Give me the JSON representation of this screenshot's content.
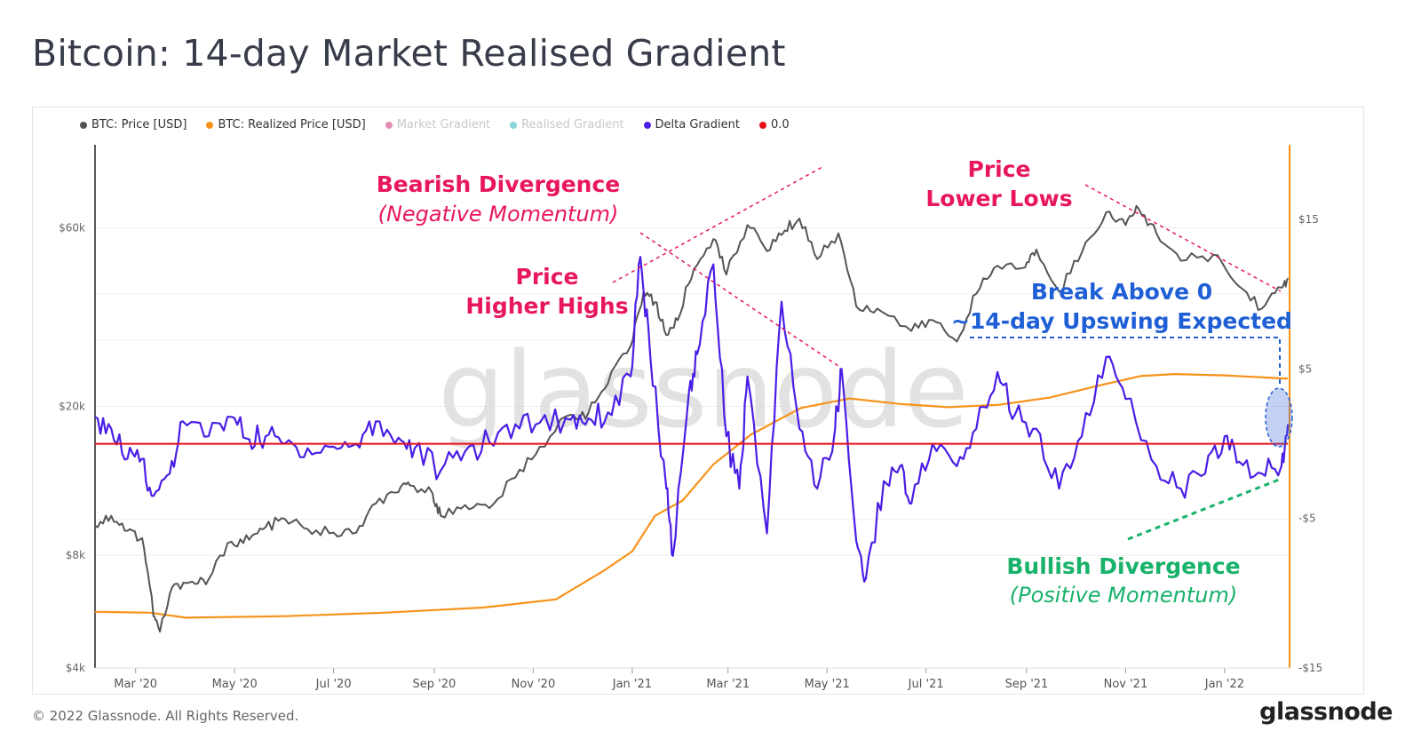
{
  "title": "Bitcoin: 14-day Market Realised Gradient",
  "legend": [
    {
      "label": "BTC: Price [USD]",
      "color": "#555555",
      "active": true
    },
    {
      "label": "BTC: Realized Price [USD]",
      "color": "#f7931a",
      "active": true
    },
    {
      "label": "Market Gradient",
      "color": "#e38fb5",
      "active": false
    },
    {
      "label": "Realised Gradient",
      "color": "#88d4d8",
      "active": false
    },
    {
      "label": "Delta Gradient",
      "color": "#4a1ee6",
      "active": true
    },
    {
      "label": "0.0",
      "color": "#e8101a",
      "active": true
    }
  ],
  "watermark": "glassnode",
  "footer": {
    "copyright": "© 2022 Glassnode. All Rights Reserved.",
    "logo": "glassnode"
  },
  "annotations": {
    "bearish_title": "Bearish Divergence",
    "bearish_sub": "(Negative Momentum)",
    "higher_highs_1": "Price",
    "higher_highs_2": "Higher Highs",
    "lower_lows_1": "Price",
    "lower_lows_2": "Lower Lows",
    "break_1": "Break Above 0",
    "break_2": "~14-day Upswing Expected",
    "bullish_title": "Bullish Divergence",
    "bullish_sub": "(Positive Momentum)"
  },
  "colors": {
    "price": "#555555",
    "realized": "#f7931a",
    "delta": "#4a1ee6",
    "zero": "#e8101a",
    "bear": "#e8175d",
    "bull": "#19b26b",
    "break": "#1f5fd6"
  },
  "chart_data": {
    "type": "line",
    "title": "Bitcoin: 14-day Market Realised Gradient",
    "x_ticks": [
      "Mar '20",
      "May '20",
      "Jul '20",
      "Sep '20",
      "Nov '20",
      "Jan '21",
      "Mar '21",
      "May '21",
      "Jul '21",
      "Sep '21",
      "Nov '21",
      "Jan '22"
    ],
    "x_tick_dates": [
      "2020-03-01",
      "2020-05-01",
      "2020-07-01",
      "2020-09-01",
      "2020-11-01",
      "2021-01-01",
      "2021-03-01",
      "2021-05-01",
      "2021-07-01",
      "2021-09-01",
      "2021-11-01",
      "2022-01-01"
    ],
    "x_range": [
      "2020-02-05",
      "2022-02-10"
    ],
    "y_left": {
      "scale": "log",
      "ticks": [
        "$4k",
        "$8k",
        "$20k",
        "$60k"
      ],
      "tick_values": [
        4000,
        8000,
        20000,
        60000
      ],
      "range": [
        4000,
        100000
      ]
    },
    "y_right": {
      "scale": "linear",
      "ticks": [
        "-$15",
        "-$5",
        "$5",
        "$15"
      ],
      "tick_values": [
        -15,
        -5,
        5,
        15
      ],
      "range": [
        -15,
        20
      ]
    },
    "grid": true,
    "legend_position": "top-left",
    "series": [
      {
        "name": "BTC: Price [USD]",
        "axis": "left",
        "points": [
          [
            "2020-02-05",
            9600
          ],
          [
            "2020-02-15",
            10200
          ],
          [
            "2020-02-25",
            9300
          ],
          [
            "2020-03-05",
            8900
          ],
          [
            "2020-03-12",
            5500
          ],
          [
            "2020-03-16",
            5000
          ],
          [
            "2020-03-25",
            6700
          ],
          [
            "2020-04-05",
            6800
          ],
          [
            "2020-04-15",
            6900
          ],
          [
            "2020-04-29",
            8700
          ],
          [
            "2020-05-10",
            8800
          ],
          [
            "2020-05-20",
            9500
          ],
          [
            "2020-06-01",
            10000
          ],
          [
            "2020-06-15",
            9400
          ],
          [
            "2020-07-01",
            9200
          ],
          [
            "2020-07-15",
            9200
          ],
          [
            "2020-07-27",
            11000
          ],
          [
            "2020-08-10",
            11800
          ],
          [
            "2020-08-17",
            12300
          ],
          [
            "2020-08-31",
            11700
          ],
          [
            "2020-09-05",
            10200
          ],
          [
            "2020-09-20",
            10900
          ],
          [
            "2020-10-05",
            10700
          ],
          [
            "2020-10-21",
            12900
          ],
          [
            "2020-11-05",
            15600
          ],
          [
            "2020-11-24",
            19000
          ],
          [
            "2020-12-05",
            19200
          ],
          [
            "2020-12-17",
            23000
          ],
          [
            "2020-12-31",
            29000
          ],
          [
            "2021-01-08",
            40500
          ],
          [
            "2021-01-15",
            38000
          ],
          [
            "2021-01-22",
            31000
          ],
          [
            "2021-01-29",
            34000
          ],
          [
            "2021-02-08",
            46500
          ],
          [
            "2021-02-20",
            56000
          ],
          [
            "2021-02-28",
            45000
          ],
          [
            "2021-03-13",
            61000
          ],
          [
            "2021-03-25",
            52000
          ],
          [
            "2021-04-05",
            59000
          ],
          [
            "2021-04-14",
            63500
          ],
          [
            "2021-04-25",
            49500
          ],
          [
            "2021-05-08",
            58000
          ],
          [
            "2021-05-19",
            37000
          ],
          [
            "2021-06-01",
            36500
          ],
          [
            "2021-06-22",
            31800
          ],
          [
            "2021-07-05",
            34000
          ],
          [
            "2021-07-20",
            29800
          ],
          [
            "2021-08-01",
            40000
          ],
          [
            "2021-08-14",
            47500
          ],
          [
            "2021-08-31",
            47000
          ],
          [
            "2021-09-07",
            52500
          ],
          [
            "2021-09-21",
            40500
          ],
          [
            "2021-10-05",
            51500
          ],
          [
            "2021-10-20",
            66000
          ],
          [
            "2021-11-01",
            61000
          ],
          [
            "2021-11-09",
            67500
          ],
          [
            "2021-11-20",
            58000
          ],
          [
            "2021-12-05",
            49000
          ],
          [
            "2021-12-25",
            50800
          ],
          [
            "2022-01-10",
            41800
          ],
          [
            "2022-01-24",
            36500
          ],
          [
            "2022-02-05",
            41500
          ],
          [
            "2022-02-09",
            44000
          ]
        ]
      },
      {
        "name": "BTC: Realized Price [USD]",
        "axis": "left",
        "points": [
          [
            "2020-02-05",
            5650
          ],
          [
            "2020-03-10",
            5620
          ],
          [
            "2020-04-01",
            5450
          ],
          [
            "2020-06-01",
            5500
          ],
          [
            "2020-08-01",
            5620
          ],
          [
            "2020-10-01",
            5800
          ],
          [
            "2020-11-15",
            6100
          ],
          [
            "2020-12-15",
            7300
          ],
          [
            "2021-01-01",
            8200
          ],
          [
            "2021-01-15",
            10200
          ],
          [
            "2021-02-01",
            11200
          ],
          [
            "2021-02-20",
            14000
          ],
          [
            "2021-03-15",
            16800
          ],
          [
            "2021-04-15",
            19800
          ],
          [
            "2021-05-15",
            21000
          ],
          [
            "2021-06-15",
            20300
          ],
          [
            "2021-07-15",
            19900
          ],
          [
            "2021-08-15",
            20200
          ],
          [
            "2021-09-15",
            21100
          ],
          [
            "2021-10-15",
            22700
          ],
          [
            "2021-11-10",
            24100
          ],
          [
            "2021-12-01",
            24400
          ],
          [
            "2022-01-01",
            24200
          ],
          [
            "2022-01-25",
            23900
          ],
          [
            "2022-02-09",
            23700
          ]
        ]
      },
      {
        "name": "Delta Gradient",
        "axis": "right",
        "points": [
          [
            "2020-02-05",
            1.8
          ],
          [
            "2020-02-15",
            1.0
          ],
          [
            "2020-02-25",
            -1.0
          ],
          [
            "2020-03-05",
            -1.0
          ],
          [
            "2020-03-12",
            -3.5
          ],
          [
            "2020-03-22",
            -2.0
          ],
          [
            "2020-03-30",
            1.5
          ],
          [
            "2020-04-15",
            0.5
          ],
          [
            "2020-04-29",
            1.8
          ],
          [
            "2020-05-10",
            0.3
          ],
          [
            "2020-05-20",
            0.5
          ],
          [
            "2020-06-01",
            0.0
          ],
          [
            "2020-06-15",
            -0.3
          ],
          [
            "2020-07-01",
            -0.2
          ],
          [
            "2020-07-15",
            0.0
          ],
          [
            "2020-07-27",
            1.5
          ],
          [
            "2020-08-10",
            0.4
          ],
          [
            "2020-08-20",
            -0.3
          ],
          [
            "2020-09-05",
            -1.8
          ],
          [
            "2020-09-20",
            -0.5
          ],
          [
            "2020-10-05",
            0.1
          ],
          [
            "2020-10-21",
            1.3
          ],
          [
            "2020-11-05",
            1.4
          ],
          [
            "2020-11-24",
            1.6
          ],
          [
            "2020-12-05",
            1.7
          ],
          [
            "2020-12-17",
            2.1
          ],
          [
            "2020-12-31",
            4.5
          ],
          [
            "2021-01-06",
            12.5
          ],
          [
            "2021-01-12",
            6.0
          ],
          [
            "2021-01-22",
            -3.0
          ],
          [
            "2021-01-26",
            -7.5
          ],
          [
            "2021-02-05",
            3.5
          ],
          [
            "2021-02-10",
            6.0
          ],
          [
            "2021-02-20",
            12.0
          ],
          [
            "2021-02-28",
            0.5
          ],
          [
            "2021-03-08",
            -3.0
          ],
          [
            "2021-03-13",
            4.5
          ],
          [
            "2021-03-25",
            -6.0
          ],
          [
            "2021-04-03",
            9.5
          ],
          [
            "2021-04-14",
            1.0
          ],
          [
            "2021-04-25",
            -3.0
          ],
          [
            "2021-05-06",
            1.0
          ],
          [
            "2021-05-10",
            5.0
          ],
          [
            "2021-05-19",
            -6.5
          ],
          [
            "2021-05-25",
            -9.0
          ],
          [
            "2021-06-05",
            -2.5
          ],
          [
            "2021-06-15",
            -1.5
          ],
          [
            "2021-06-22",
            -4.0
          ],
          [
            "2021-07-05",
            0.0
          ],
          [
            "2021-07-20",
            -1.5
          ],
          [
            "2021-08-01",
            1.0
          ],
          [
            "2021-08-14",
            4.8
          ],
          [
            "2021-08-25",
            2.0
          ],
          [
            "2021-09-07",
            1.0
          ],
          [
            "2021-09-21",
            -3.0
          ],
          [
            "2021-10-05",
            0.5
          ],
          [
            "2021-10-20",
            5.8
          ],
          [
            "2021-11-01",
            3.0
          ],
          [
            "2021-11-20",
            -1.5
          ],
          [
            "2021-12-05",
            -3.0
          ],
          [
            "2021-12-20",
            -2.0
          ],
          [
            "2022-01-01",
            0.5
          ],
          [
            "2022-01-10",
            -1.2
          ],
          [
            "2022-01-24",
            -2.0
          ],
          [
            "2022-02-05",
            -1.5
          ],
          [
            "2022-02-09",
            1.3
          ]
        ]
      },
      {
        "name": "0.0",
        "axis": "right",
        "points": [
          [
            "2020-02-05",
            0
          ],
          [
            "2022-02-09",
            0
          ]
        ]
      }
    ],
    "annotations": {
      "bearish_divergence": "Bearish Divergence (Negative Momentum)",
      "higher_highs": "Price Higher Highs",
      "lower_lows": "Price Lower Lows",
      "break": "Break Above 0 ~14-day Upswing Expected",
      "bullish_divergence": "Bullish Divergence (Positive Momentum)"
    }
  }
}
